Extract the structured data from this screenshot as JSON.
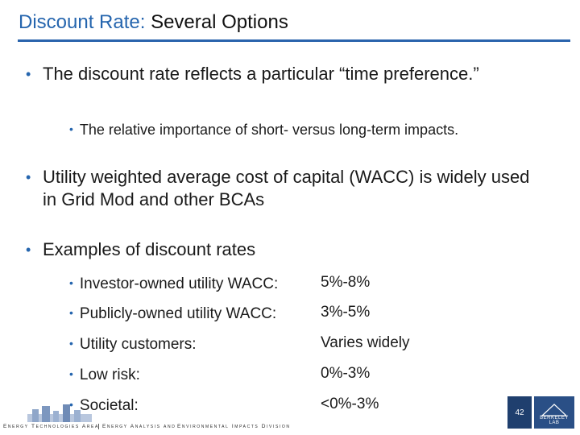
{
  "title": {
    "accent": "Discount Rate:",
    "rest": "Several Options"
  },
  "bullets": [
    {
      "text": "The discount rate reflects a particular “time preference.”"
    },
    {
      "text": "Utility weighted average cost of capital (WACC) is widely used in Grid Mod and other BCAs"
    },
    {
      "text": "Examples of discount rates"
    }
  ],
  "sub_bullet": "The relative importance of short- versus long-term impacts.",
  "rates": [
    {
      "label": "Investor-owned utility WACC:",
      "value": "5%-8%"
    },
    {
      "label": "Publicly-owned utility WACC:",
      "value": "3%-5%"
    },
    {
      "label": "Utility customers:",
      "value": "Varies widely"
    },
    {
      "label": "Low risk:",
      "value": "0%-3%"
    },
    {
      "label": "Societal:",
      "value": "<0%-3%"
    }
  ],
  "footer": {
    "left": "Energy Technologies Area",
    "middle": "Energy Analysis and",
    "right": "Environmental Impacts Division",
    "page_number": "42",
    "lab": "BERKELEY LAB"
  },
  "colors": {
    "accent": "#2565ae",
    "rule": "#2a64ad",
    "lab_box": "#2a4f86"
  }
}
